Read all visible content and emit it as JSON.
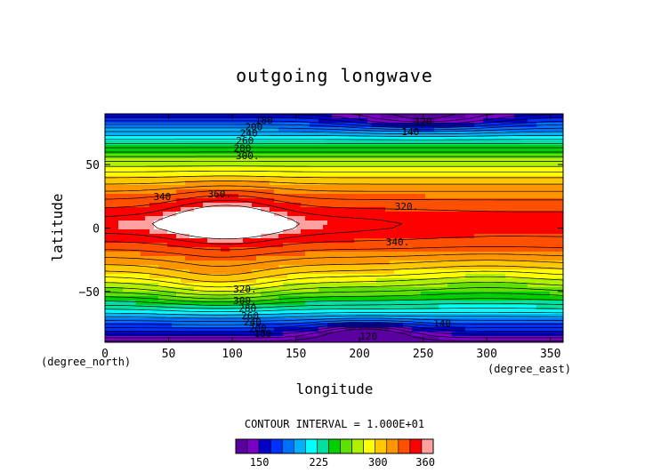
{
  "chart_data": {
    "type": "heatmap",
    "title": "outgoing longwave",
    "xlabel": "longitude",
    "ylabel": "latitude",
    "x_unit": "(degree_east)",
    "y_unit": "(degree_north)",
    "xlim": [
      0,
      360
    ],
    "ylim": [
      -90,
      90
    ],
    "xticks": [
      "0",
      "50",
      "100",
      "150",
      "200",
      "250",
      "300",
      "350"
    ],
    "xtick_values": [
      0,
      50,
      100,
      150,
      200,
      250,
      300,
      350
    ],
    "yticks": [
      "50",
      "0",
      "−50"
    ],
    "ytick_values": [
      50,
      0,
      -50
    ],
    "contour_interval_text": "CONTOUR INTERVAL = 1.000E+01",
    "colorbar_min": 120,
    "colorbar_max": 370,
    "colorbar_ticks": [
      "150",
      "225",
      "300",
      "360"
    ],
    "colorbar_tick_values": [
      150,
      225,
      300,
      360
    ],
    "contour_labels": [
      {
        "text": "360.",
        "lon": 90,
        "lat": 27
      },
      {
        "text": "340",
        "lon": 45,
        "lat": 25
      },
      {
        "text": "340.",
        "lon": 230,
        "lat": -11
      },
      {
        "text": "320.",
        "lon": 237,
        "lat": 17
      },
      {
        "text": "320.",
        "lon": 110,
        "lat": -48
      },
      {
        "text": "300.",
        "lon": 112,
        "lat": 57
      },
      {
        "text": "300.",
        "lon": 110,
        "lat": -57
      },
      {
        "text": "280",
        "lon": 108,
        "lat": 63
      },
      {
        "text": "280",
        "lon": 112,
        "lat": -63
      },
      {
        "text": "260",
        "lon": 110,
        "lat": 69
      },
      {
        "text": "260",
        "lon": 114,
        "lat": -69
      },
      {
        "text": "240",
        "lon": 113,
        "lat": 75
      },
      {
        "text": "240",
        "lon": 116,
        "lat": -74
      },
      {
        "text": "200",
        "lon": 117,
        "lat": 80
      },
      {
        "text": "200",
        "lon": 120,
        "lat": -79
      },
      {
        "text": "180",
        "lon": 125,
        "lat": 85
      },
      {
        "text": "180",
        "lon": 124,
        "lat": -83
      },
      {
        "text": "120",
        "lon": 250,
        "lat": 84
      },
      {
        "text": "140",
        "lon": 240,
        "lat": 76
      },
      {
        "text": "120",
        "lon": 207,
        "lat": -85
      },
      {
        "text": "140",
        "lon": 265,
        "lat": -75
      }
    ]
  },
  "colors": {
    "palette": [
      "#5a00a0",
      "#7a00c8",
      "#0000c8",
      "#0030ff",
      "#0070ff",
      "#00b0ff",
      "#00ffff",
      "#00e0a0",
      "#00d000",
      "#60e000",
      "#b0f000",
      "#ffff00",
      "#ffc800",
      "#ff9600",
      "#ff5000",
      "#ff0000",
      "#ffa0a0"
    ]
  }
}
